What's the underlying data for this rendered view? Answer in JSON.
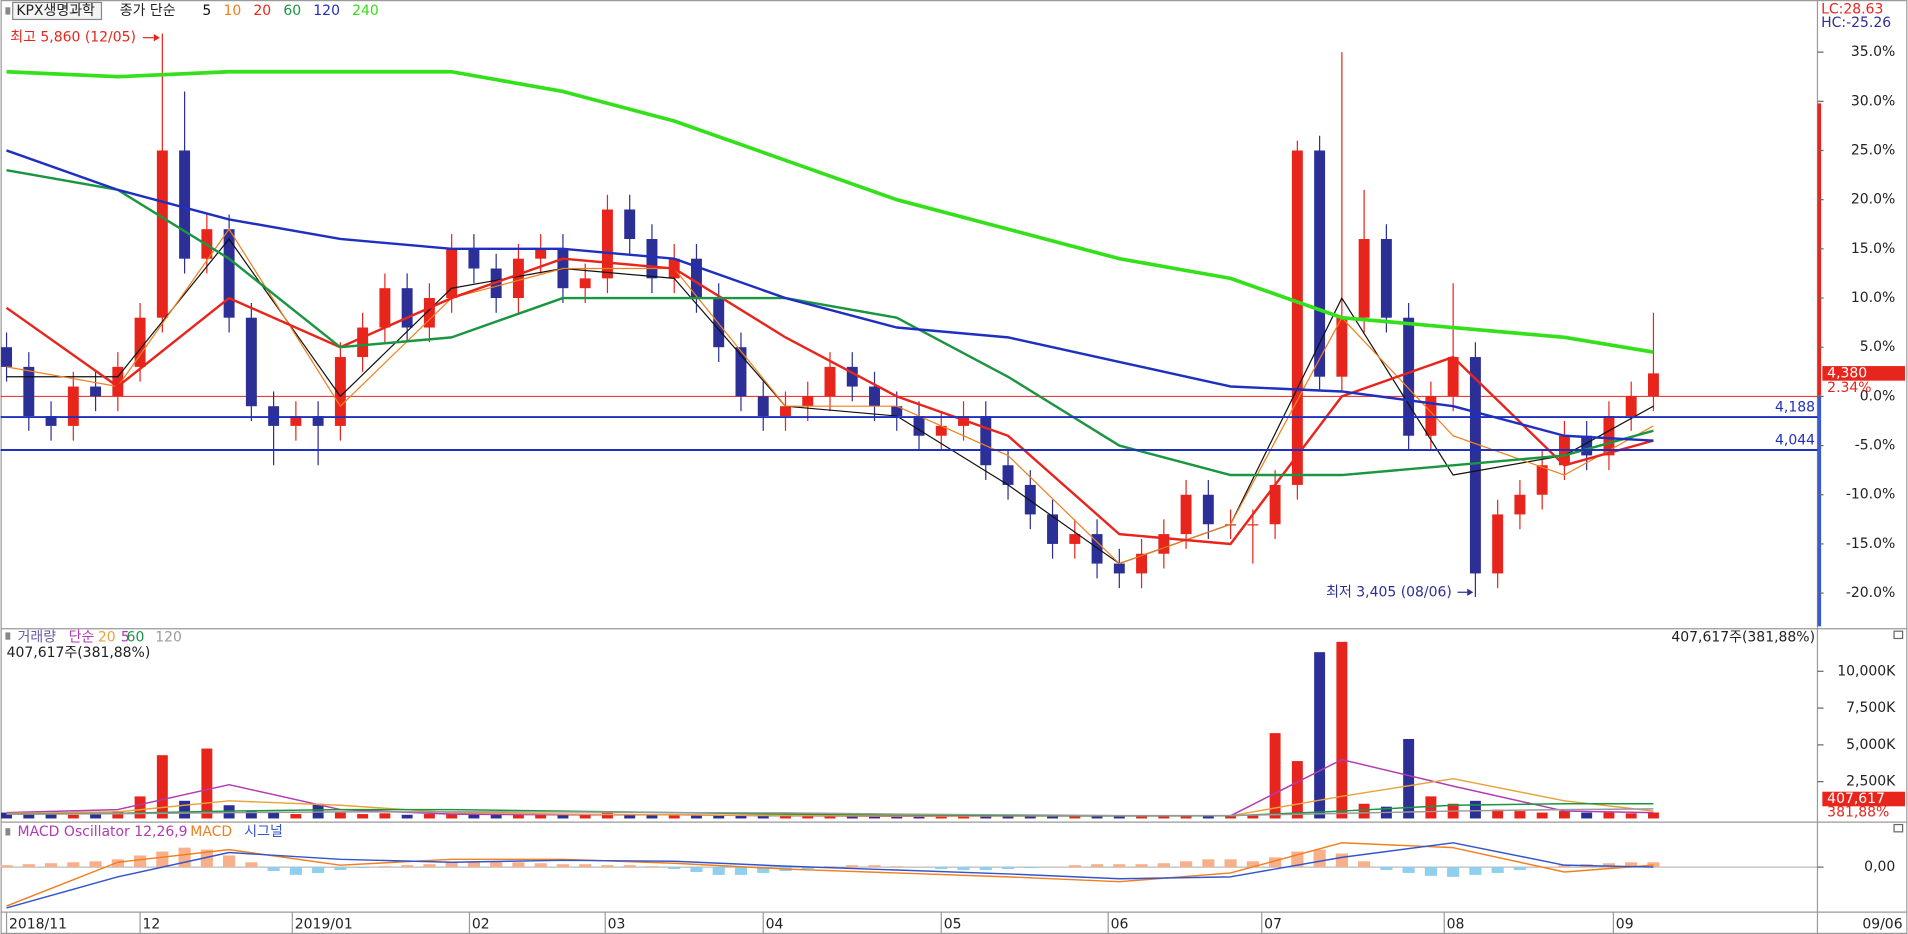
{
  "chart_data": [
    {
      "type": "candlestick",
      "title": "KPX생명과학",
      "legend_prefix": "종가 단순",
      "open": [
        5,
        3,
        -2,
        -3,
        1,
        0,
        3,
        8,
        25,
        14,
        17,
        8,
        -1,
        -3,
        -2,
        -3,
        4,
        7,
        11,
        7,
        10,
        15,
        13,
        10,
        14,
        15,
        11,
        12,
        19,
        16,
        12,
        14,
        10,
        5,
        0,
        -2,
        -1,
        0,
        3,
        1,
        -1,
        -2,
        -4,
        -3,
        -2,
        -7,
        -9,
        -12,
        -15,
        -14,
        -17,
        -18,
        -16,
        -14,
        -10,
        -13,
        -13,
        -13,
        -9,
        25,
        2,
        8,
        16,
        8,
        -4,
        0,
        4,
        -18,
        -12,
        -10,
        -7,
        -4,
        -6,
        -2,
        0
      ],
      "high": [
        6.5,
        4.5,
        -0.5,
        2.5,
        2.5,
        4.5,
        9.5,
        36.9,
        31,
        18.5,
        18.5,
        9.5,
        0.5,
        -0.5,
        -0.5,
        5.5,
        8.5,
        12.5,
        12.5,
        11.5,
        16.5,
        16.5,
        14.5,
        15.5,
        16.5,
        16.5,
        13.5,
        20.5,
        20.5,
        17.5,
        15.5,
        15.5,
        11.5,
        6.5,
        1.5,
        0.5,
        1.5,
        4.5,
        4.5,
        2.5,
        0.5,
        -0.5,
        -1.5,
        -0.5,
        -0.5,
        -5.5,
        -7.5,
        -10.5,
        -12.5,
        -12.5,
        -15.5,
        -14.5,
        -12.5,
        -8.5,
        -8.5,
        -11.5,
        -11.5,
        -7.5,
        26,
        26.5,
        35,
        21,
        17.5,
        9.5,
        1.5,
        11.5,
        5.5,
        -10.5,
        -8.5,
        -5.5,
        -2.5,
        -2.5,
        -0.5,
        1.5,
        8.5
      ],
      "low": [
        1.5,
        -3.5,
        -4.5,
        -4.5,
        -1.5,
        -1.5,
        1.5,
        6.5,
        12.5,
        12.5,
        6.5,
        -2.5,
        -7,
        -4.5,
        -7,
        -4.5,
        2.5,
        5.5,
        5.5,
        5.5,
        8.5,
        11.5,
        8.5,
        8.5,
        12.5,
        9.5,
        9.5,
        10.5,
        14.5,
        10.5,
        10.5,
        8.5,
        3.5,
        -1.5,
        -3.5,
        -3.5,
        -2.5,
        -1.5,
        -0.5,
        -2.5,
        -3.5,
        -5.5,
        -5.5,
        -4.5,
        -8.5,
        -10.5,
        -13.5,
        -16.5,
        -16.5,
        -18.5,
        -19.5,
        -19.5,
        -17.5,
        -15.5,
        -14.5,
        -14.5,
        -17,
        -14.5,
        -10.5,
        0.5,
        0.5,
        6.5,
        6.5,
        -5.5,
        -5.5,
        -1.5,
        -20.4,
        -19.5,
        -13.5,
        -11.5,
        -8.5,
        -7.5,
        -7.5,
        -3.5,
        -1.5
      ],
      "close": [
        3,
        -2,
        -3,
        1,
        0,
        3,
        8,
        25,
        14,
        17,
        8,
        -1,
        -3,
        -2,
        -3,
        4,
        7,
        11,
        7,
        10,
        15,
        13,
        10,
        14,
        15,
        11,
        12,
        19,
        16,
        12,
        14,
        10,
        5,
        0,
        -2,
        -1,
        0,
        3,
        1,
        -1,
        -2,
        -4,
        -3,
        -2,
        -7,
        -9,
        -12,
        -15,
        -14,
        -17,
        -18,
        -16,
        -14,
        -10,
        -13,
        -13,
        -13,
        -9,
        25,
        2,
        8,
        16,
        8,
        -4,
        0,
        4,
        -18,
        -12,
        -10,
        -7,
        -4,
        -6,
        -2,
        0,
        2.34
      ],
      "up_color": "#e8251d",
      "down_color": "#2b2f96",
      "xlim": [
        -0.27,
        81.37
      ],
      "xticks": [
        {
          "value": 0,
          "label": "2018/11"
        },
        {
          "value": 6,
          "label": "12"
        },
        {
          "value": 12.84,
          "label": "2019/01"
        },
        {
          "value": 20.8,
          "label": "02"
        },
        {
          "value": 26.9,
          "label": "03"
        },
        {
          "value": 34,
          "label": "04"
        },
        {
          "value": 42,
          "label": "05"
        },
        {
          "value": 49.5,
          "label": "06"
        },
        {
          "value": 56.4,
          "label": "07"
        },
        {
          "value": 64.6,
          "label": "08"
        },
        {
          "value": 72.2,
          "label": "09"
        }
      ],
      "cursor_date": "09/06",
      "ylim": [
        -23.5,
        40.3
      ],
      "yticks": [
        {
          "value": -20,
          "label": "-20.0%"
        },
        {
          "value": -15,
          "label": "-15.0%"
        },
        {
          "value": -10,
          "label": "-10.0%"
        },
        {
          "value": -5,
          "label": "-5.0%"
        },
        {
          "value": 0,
          "label": "0.0%"
        },
        {
          "value": 5,
          "label": "5.0%"
        },
        {
          "value": 10,
          "label": "10.0%"
        },
        {
          "value": 15,
          "label": "15.0%"
        },
        {
          "value": 20,
          "label": "20.0%"
        },
        {
          "value": 25,
          "label": "25.0%"
        },
        {
          "value": 30,
          "label": "30.0%"
        },
        {
          "value": 35,
          "label": "35.0%"
        }
      ],
      "series": [
        {
          "name": "5",
          "color": "#111111",
          "width": 1,
          "x": [
            0,
            5,
            10,
            15,
            20,
            25,
            30,
            35,
            40,
            45,
            50,
            55,
            60,
            65,
            70,
            74
          ],
          "values": [
            2,
            2,
            16,
            0,
            11,
            13,
            12,
            -1,
            -2,
            -9,
            -17,
            -13,
            10,
            -8,
            -6,
            -1
          ]
        },
        {
          "name": "10",
          "color": "#f07f1e",
          "width": 1,
          "x": [
            0,
            5,
            10,
            15,
            20,
            25,
            30,
            35,
            40,
            45,
            50,
            55,
            60,
            65,
            70,
            74
          ],
          "values": [
            3,
            1,
            17,
            -1,
            10,
            13,
            13,
            -1,
            -1,
            -6,
            -17,
            -13,
            8,
            -4,
            -8,
            -3
          ]
        },
        {
          "name": "20",
          "color": "#e8251d",
          "width": 2,
          "x": [
            0,
            5,
            10,
            15,
            20,
            25,
            30,
            35,
            40,
            45,
            50,
            55,
            60,
            65,
            70,
            74
          ],
          "values": [
            9,
            1,
            10,
            5,
            10,
            14,
            13,
            6,
            0,
            -4,
            -14,
            -15,
            0,
            4,
            -7,
            -4.5
          ]
        },
        {
          "name": "60",
          "color": "#1a9641",
          "width": 2,
          "x": [
            0,
            5,
            10,
            15,
            20,
            25,
            30,
            35,
            40,
            45,
            50,
            55,
            60,
            65,
            70,
            74
          ],
          "values": [
            23,
            21,
            14,
            5,
            6,
            10,
            10,
            10,
            8,
            2,
            -5,
            -8,
            -8,
            -7,
            -6,
            -3.5
          ]
        },
        {
          "name": "120",
          "color": "#1f2fbf",
          "width": 2,
          "x": [
            0,
            5,
            10,
            15,
            20,
            25,
            30,
            35,
            40,
            45,
            50,
            55,
            60,
            65,
            70,
            74
          ],
          "values": [
            25,
            21,
            18,
            16,
            15,
            15,
            14,
            10,
            7,
            6,
            3.5,
            1,
            0.5,
            -1,
            -4,
            -4.5
          ]
        },
        {
          "name": "240",
          "color": "#33e01a",
          "width": 3,
          "x": [
            0,
            5,
            10,
            15,
            20,
            25,
            30,
            35,
            40,
            45,
            50,
            55,
            60,
            65,
            70,
            74
          ],
          "values": [
            33,
            32.5,
            33,
            33,
            33,
            31,
            28,
            24,
            20,
            17,
            14,
            12,
            8,
            7,
            6,
            4.5
          ]
        }
      ],
      "levels": [
        {
          "value": -2.1,
          "price": "4,188",
          "color": "#1f2fbf"
        },
        {
          "value": -5.45,
          "price": "4,044",
          "color": "#1f2fbf"
        }
      ],
      "last_price": {
        "value": 2.34,
        "label": "2.34%",
        "price": "4,380",
        "color": "#e8251d"
      },
      "annotations": [
        {
          "text": "최고 5,860 (12/05)",
          "color": "#e8251d"
        },
        {
          "text": "최저 3,405 (08/06)",
          "color": "#2b2f96"
        }
      ],
      "lc": "LC:28.63",
      "hc": "HC:-25.26"
    },
    {
      "type": "bar",
      "title": "거래량",
      "legend_prefix": "단순",
      "values": [
        400000,
        350000,
        300000,
        250000,
        300000,
        500000,
        1500000,
        4300000,
        1200000,
        4750000,
        900000,
        500000,
        400000,
        300000,
        1000000,
        400000,
        300000,
        350000,
        250000,
        300000,
        350000,
        300000,
        250000,
        300000,
        250000,
        200000,
        200000,
        400000,
        300000,
        250000,
        200000,
        200000,
        250000,
        200000,
        200000,
        150000,
        150000,
        200000,
        150000,
        150000,
        150000,
        150000,
        150000,
        150000,
        200000,
        200000,
        150000,
        200000,
        150000,
        200000,
        150000,
        150000,
        200000,
        200000,
        150000,
        150000,
        200000,
        5800000,
        3900000,
        11300000,
        12000000,
        1000000,
        800000,
        5400000,
        1500000,
        1000000,
        1200000,
        600000,
        500000,
        400000,
        500000,
        400000,
        400000,
        350000,
        407617
      ],
      "up_color": "#e8251d",
      "down_color": "#2b2f96",
      "ylim": [
        0,
        12560000
      ],
      "yticks": [
        {
          "value": 2500000,
          "label": "2,500K"
        },
        {
          "value": 5000000,
          "label": "5,000K"
        },
        {
          "value": 7500000,
          "label": "7,500K"
        },
        {
          "value": 10000000,
          "label": "10,000K"
        }
      ],
      "series": [
        {
          "name": "5",
          "color": "#b23ab2",
          "x": [
            0,
            5,
            10,
            15,
            20,
            25,
            30,
            35,
            40,
            45,
            50,
            55,
            60,
            65,
            70,
            74
          ],
          "values": [
            400000,
            600000,
            2300000,
            600000,
            300000,
            250000,
            250000,
            180000,
            150000,
            170000,
            170000,
            180000,
            4000000,
            2200000,
            500000,
            400000
          ]
        },
        {
          "name": "20",
          "color": "#e8a33c",
          "x": [
            0,
            5,
            10,
            15,
            20,
            25,
            30,
            35,
            40,
            45,
            50,
            55,
            60,
            65,
            70,
            74
          ],
          "values": [
            350000,
            450000,
            1200000,
            900000,
            400000,
            300000,
            250000,
            200000,
            170000,
            170000,
            170000,
            180000,
            1500000,
            2700000,
            1200000,
            500000
          ]
        },
        {
          "name": "60",
          "color": "#1a9641",
          "x": [
            0,
            5,
            10,
            15,
            20,
            25,
            30,
            35,
            40,
            45,
            50,
            55,
            60,
            65,
            70,
            74
          ],
          "values": [
            300000,
            350000,
            500000,
            600000,
            600000,
            500000,
            400000,
            300000,
            250000,
            200000,
            180000,
            180000,
            500000,
            900000,
            1000000,
            1000000
          ]
        },
        {
          "name": "120",
          "color": "#9a9a9a",
          "x": [
            0,
            5,
            10,
            15,
            20,
            25,
            30,
            35,
            40,
            45,
            50,
            55,
            60,
            65,
            70,
            74
          ],
          "values": [
            300000,
            320000,
            400000,
            450000,
            450000,
            450000,
            400000,
            380000,
            300000,
            250000,
            200000,
            200000,
            350000,
            500000,
            600000,
            650000
          ]
        }
      ],
      "summary": "407,617주(381,88%)",
      "last_label": "407,617",
      "last_ratio": "381,88%"
    },
    {
      "type": "macd",
      "title": "MACD Oscillator 12,26,9",
      "values": [
        2,
        3,
        4,
        5,
        6,
        8,
        12,
        16,
        20,
        18,
        12,
        5,
        -4,
        -8,
        -6,
        -3,
        -1,
        1,
        2,
        3,
        5,
        6,
        6,
        5,
        4,
        3,
        3,
        2,
        2,
        1,
        -2,
        -5,
        -8,
        -8,
        -6,
        -4,
        -2,
        1,
        2,
        2,
        1,
        0,
        -2,
        -3,
        -3,
        -2,
        -1,
        0,
        2,
        3,
        3,
        3,
        4,
        6,
        8,
        8,
        6,
        10,
        16,
        18,
        14,
        6,
        -3,
        -6,
        -9,
        -10,
        -8,
        -6,
        -3,
        0,
        2,
        3,
        4,
        5,
        5
      ],
      "pos_color": "#f7b08a",
      "neg_color": "#8fd0ee",
      "ylim": [
        -40,
        40
      ],
      "yticks": [
        {
          "value": 0,
          "label": "0,00"
        }
      ],
      "series": [
        {
          "name": "MACD",
          "color": "#f07f1e",
          "x": [
            0,
            5,
            10,
            15,
            20,
            25,
            30,
            35,
            40,
            45,
            50,
            55,
            60,
            65,
            70,
            74
          ],
          "values": [
            -40,
            5,
            18,
            2,
            8,
            8,
            4,
            -2,
            -6,
            -10,
            -15,
            -6,
            25,
            20,
            -5,
            2
          ]
        },
        {
          "name": "시그널",
          "color": "#3355cc",
          "x": [
            0,
            5,
            10,
            15,
            20,
            25,
            30,
            35,
            40,
            45,
            50,
            55,
            60,
            65,
            70,
            74
          ],
          "values": [
            -42,
            -10,
            15,
            8,
            5,
            7,
            6,
            1,
            -3,
            -7,
            -12,
            -10,
            10,
            25,
            2,
            0
          ]
        }
      ]
    }
  ]
}
